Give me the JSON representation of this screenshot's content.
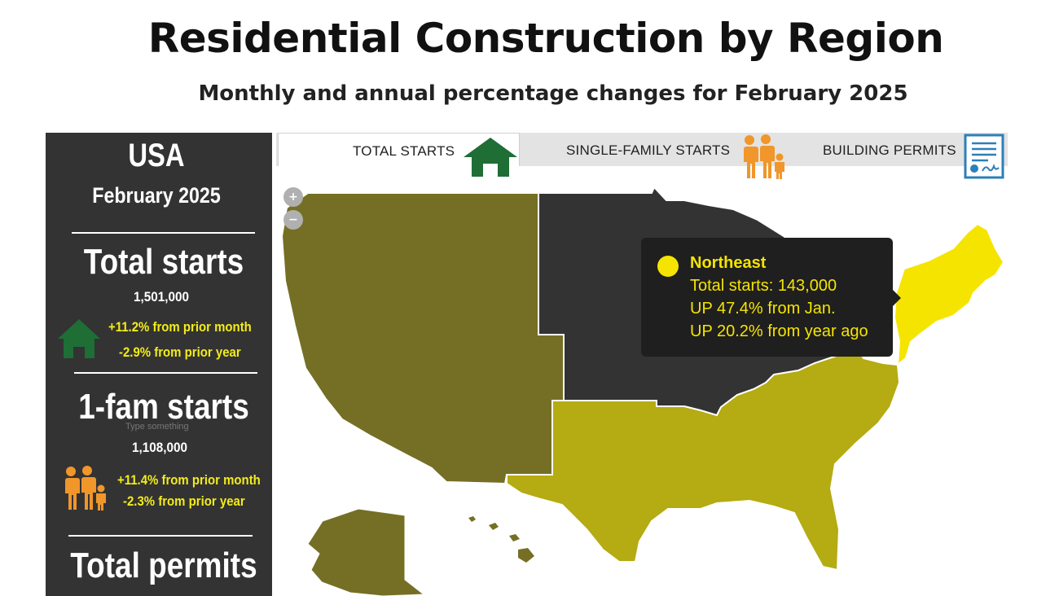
{
  "header": {
    "title": "Residential Construction by Region",
    "subtitle": "Monthly and annual percentage changes for February 2025"
  },
  "sidebar": {
    "country": "USA",
    "date": "February 2025",
    "total_starts": {
      "heading": "Total starts",
      "value": "1,501,000",
      "month_change": "+11.2%  from  prior month",
      "year_change": "-2.9% from prior year",
      "icon": "house-icon"
    },
    "single_family": {
      "heading": "1-fam starts",
      "placeholder": "Type something",
      "value": "1,108,000",
      "month_change": "+11.4%  from  prior month",
      "year_change": "-2.3% from prior year",
      "icon": "family-icon"
    },
    "permits": {
      "heading": "Total permits"
    }
  },
  "tabs": [
    {
      "label": "TOTAL STARTS",
      "icon": "house-icon",
      "active": true
    },
    {
      "label": "SINGLE-FAMILY STARTS",
      "icon": "family-icon",
      "active": false
    },
    {
      "label": "BUILDING PERMITS",
      "icon": "permit-document-icon",
      "active": false
    }
  ],
  "map": {
    "zoom_in": "+",
    "zoom_out": "−",
    "regions": [
      {
        "name": "West",
        "color": "#756f25"
      },
      {
        "name": "Midwest",
        "color": "#333333"
      },
      {
        "name": "South",
        "color": "#b5ab12"
      },
      {
        "name": "Northeast",
        "color": "#f5e400"
      }
    ],
    "tooltip": {
      "region": "Northeast",
      "total": "Total starts: 143,000",
      "month": "UP 47.4% from Jan.",
      "year": "UP 20.2% from year ago"
    }
  },
  "colors": {
    "sidebar_bg": "#333333",
    "highlight_yellow": "#f2ec1a",
    "house_green": "#1e6e36",
    "family_orange": "#f0962a",
    "permit_blue": "#2d7fb8"
  }
}
